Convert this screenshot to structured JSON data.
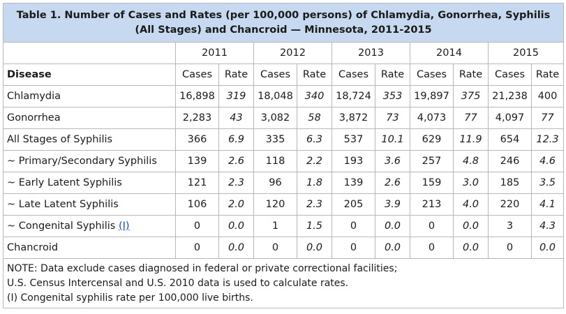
{
  "title": "Table 1. Number of Cases and Rates (per 100,000 persons) of Chlamydia, Gonorrhea, Syphilis (All Stages) and Chancroid — Minnesota, 2011-2015",
  "years": [
    "2011",
    "2012",
    "2013",
    "2014",
    "2015"
  ],
  "headers": {
    "disease": "Disease",
    "cases": "Cases",
    "rate": "Rate"
  },
  "rows": [
    {
      "label": "Chlamydia",
      "cells": [
        {
          "cases": "16,898",
          "rate": "319"
        },
        {
          "cases": "18,048",
          "rate": "340"
        },
        {
          "cases": "18,724",
          "rate": "353"
        },
        {
          "cases": "19,897",
          "rate": "375"
        },
        {
          "cases": "21,238",
          "rate": "400"
        }
      ]
    },
    {
      "label": "Gonorrhea",
      "cells": [
        {
          "cases": "2,283",
          "rate": "43"
        },
        {
          "cases": "3,082",
          "rate": "58"
        },
        {
          "cases": "3,872",
          "rate": "73"
        },
        {
          "cases": "4,073",
          "rate": "77"
        },
        {
          "cases": "4,097",
          "rate": "77"
        }
      ]
    },
    {
      "label": "All Stages of Syphilis",
      "cells": [
        {
          "cases": "366",
          "rate": "6.9"
        },
        {
          "cases": "335",
          "rate": "6.3"
        },
        {
          "cases": "537",
          "rate": "10.1"
        },
        {
          "cases": "629",
          "rate": "11.9"
        },
        {
          "cases": "654",
          "rate": "12.3"
        }
      ]
    },
    {
      "label": "~ Primary/Secondary Syphilis",
      "cells": [
        {
          "cases": "139",
          "rate": "2.6"
        },
        {
          "cases": "118",
          "rate": "2.2"
        },
        {
          "cases": "193",
          "rate": "3.6"
        },
        {
          "cases": "257",
          "rate": "4.8"
        },
        {
          "cases": "246",
          "rate": "4.6"
        }
      ]
    },
    {
      "label": "~ Early Latent Syphilis",
      "cells": [
        {
          "cases": "121",
          "rate": "2.3"
        },
        {
          "cases": "96",
          "rate": "1.8"
        },
        {
          "cases": "139",
          "rate": "2.6"
        },
        {
          "cases": "159",
          "rate": "3.0"
        },
        {
          "cases": "185",
          "rate": "3.5"
        }
      ]
    },
    {
      "label": "~ Late Latent Syphilis",
      "cells": [
        {
          "cases": "106",
          "rate": "2.0"
        },
        {
          "cases": "120",
          "rate": "2.3"
        },
        {
          "cases": "205",
          "rate": "3.9"
        },
        {
          "cases": "213",
          "rate": "4.0"
        },
        {
          "cases": "220",
          "rate": "4.1"
        }
      ]
    },
    {
      "label": "~ Congenital Syphilis",
      "link": "(I)",
      "cells": [
        {
          "cases": "0",
          "rate": "0.0"
        },
        {
          "cases": "1",
          "rate": "1.5"
        },
        {
          "cases": "0",
          "rate": "0.0"
        },
        {
          "cases": "0",
          "rate": "0.0"
        },
        {
          "cases": "3",
          "rate": "4.3"
        }
      ]
    },
    {
      "label": "Chancroid",
      "cells": [
        {
          "cases": "0",
          "rate": "0.0"
        },
        {
          "cases": "0",
          "rate": "0.0"
        },
        {
          "cases": "0",
          "rate": "0.0"
        },
        {
          "cases": "0",
          "rate": "0.0"
        },
        {
          "cases": "0",
          "rate": "0.0"
        }
      ]
    }
  ],
  "notes": [
    "NOTE: Data exclude cases diagnosed in federal or private correctional facilities;",
    "U.S. Census Intercensal and U.S. 2010 data is used to calculate rates.",
    "(I) Congenital syphilis rate per 100,000 live births."
  ],
  "colors": {
    "title_background": "#c6d9f0",
    "border": "#b7b7b7",
    "link": "#1a4fa0"
  }
}
